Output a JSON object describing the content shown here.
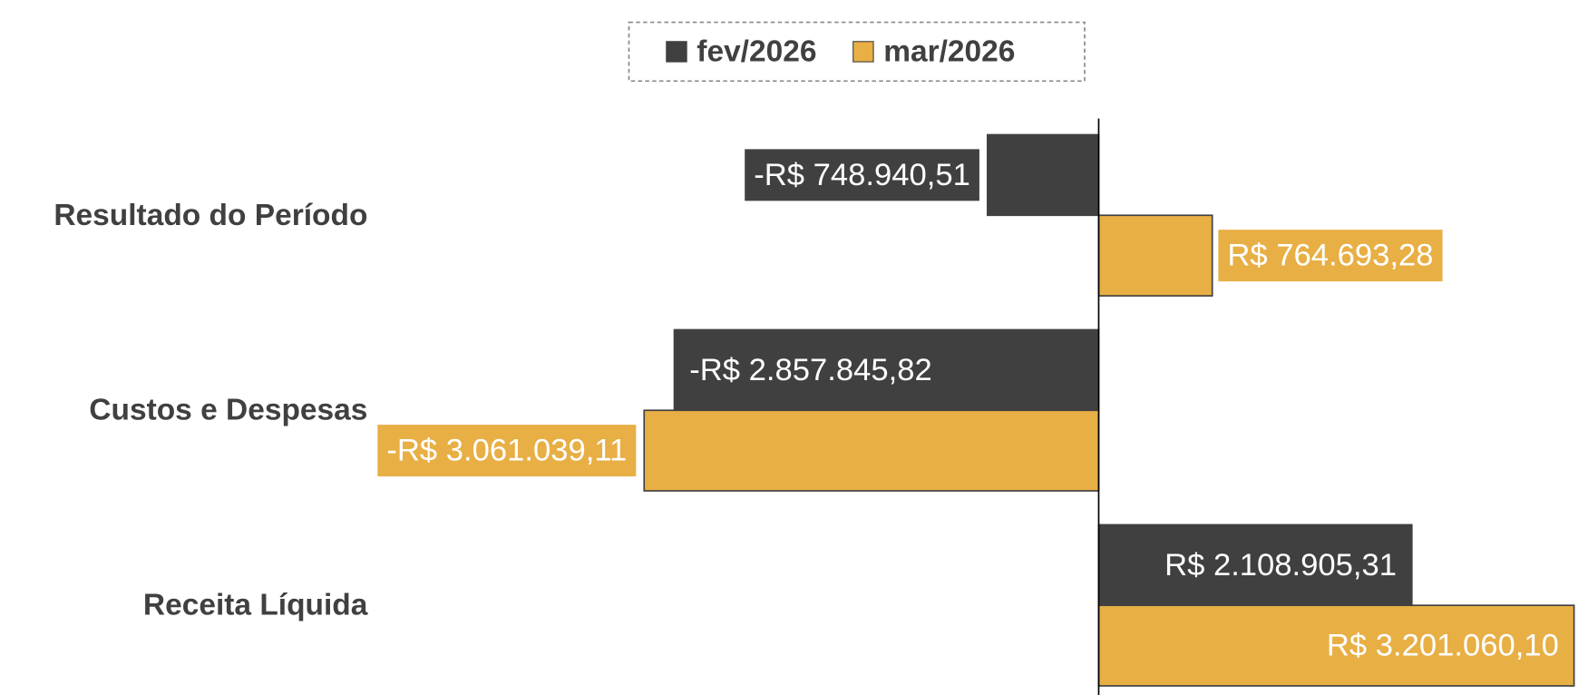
{
  "chart_data": {
    "type": "bar",
    "orientation": "horizontal",
    "categories": [
      "Resultado do Período",
      "Custos e Despesas",
      "Receita Líquida"
    ],
    "series": [
      {
        "name": "fev/2026",
        "color": "#404040",
        "values": [
          -748940.51,
          -2857845.82,
          2108905.31
        ],
        "value_labels": [
          "-R$ 748.940,51",
          "-R$ 2.857.845,82",
          "R$ 2.108.905,31"
        ]
      },
      {
        "name": "mar/2026",
        "color": "#E8AF45",
        "values": [
          764693.28,
          -3061039.11,
          3201060.1
        ],
        "value_labels": [
          "R$ 764.693,28",
          "-R$ 3.061.039,11",
          "R$ 3.201.060,10"
        ]
      }
    ],
    "xlim": [
      -4875000,
      3240000
    ]
  }
}
